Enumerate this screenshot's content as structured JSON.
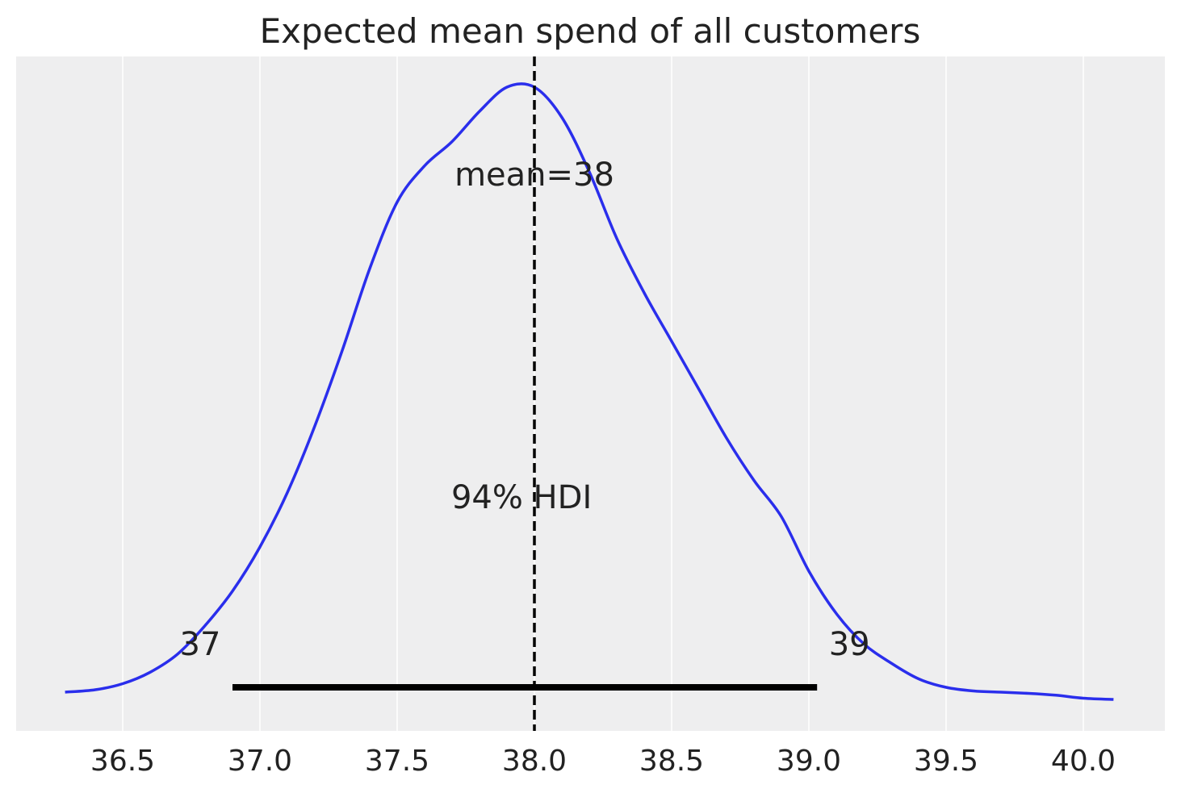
{
  "chart_data": {
    "type": "line",
    "title": "Expected mean spend of all customers",
    "xlabel": "",
    "ylabel": "",
    "xlim": [
      36.25,
      40.3
    ],
    "ylim": [
      0,
      1.0
    ],
    "grid": true,
    "x_ticks": [
      36.5,
      37.0,
      37.5,
      38.0,
      38.5,
      39.0,
      39.5,
      40.0
    ],
    "x_tick_labels": [
      "36.5",
      "37.0",
      "37.5",
      "38.0",
      "38.5",
      "39.0",
      "39.5",
      "40.0"
    ],
    "series": [
      {
        "color": "#2a2eec",
        "x": [
          36.29,
          36.4,
          36.5,
          36.6,
          36.7,
          36.8,
          36.9,
          37.0,
          37.1,
          37.2,
          37.3,
          37.4,
          37.5,
          37.6,
          37.7,
          37.8,
          37.9,
          38.0,
          38.1,
          38.2,
          38.3,
          38.4,
          38.5,
          38.6,
          38.7,
          38.8,
          38.9,
          39.0,
          39.1,
          39.2,
          39.3,
          39.4,
          39.5,
          39.6,
          39.7,
          39.8,
          39.9,
          40.0,
          40.11
        ],
        "y": [
          0.0,
          0.004,
          0.014,
          0.033,
          0.063,
          0.11,
          0.167,
          0.24,
          0.33,
          0.44,
          0.565,
          0.7,
          0.81,
          0.87,
          0.91,
          0.96,
          1.0,
          1.0,
          0.95,
          0.86,
          0.75,
          0.66,
          0.58,
          0.5,
          0.42,
          0.35,
          0.29,
          0.2,
          0.13,
          0.08,
          0.048,
          0.022,
          0.008,
          0.002,
          0.0,
          -0.002,
          -0.005,
          -0.01,
          -0.012
        ]
      }
    ],
    "mean": {
      "value": 38.0,
      "label": "mean=38"
    },
    "hdi": {
      "low": 36.9,
      "high": 39.03,
      "label": "94% HDI",
      "low_label": "37",
      "high_label": "39"
    }
  }
}
